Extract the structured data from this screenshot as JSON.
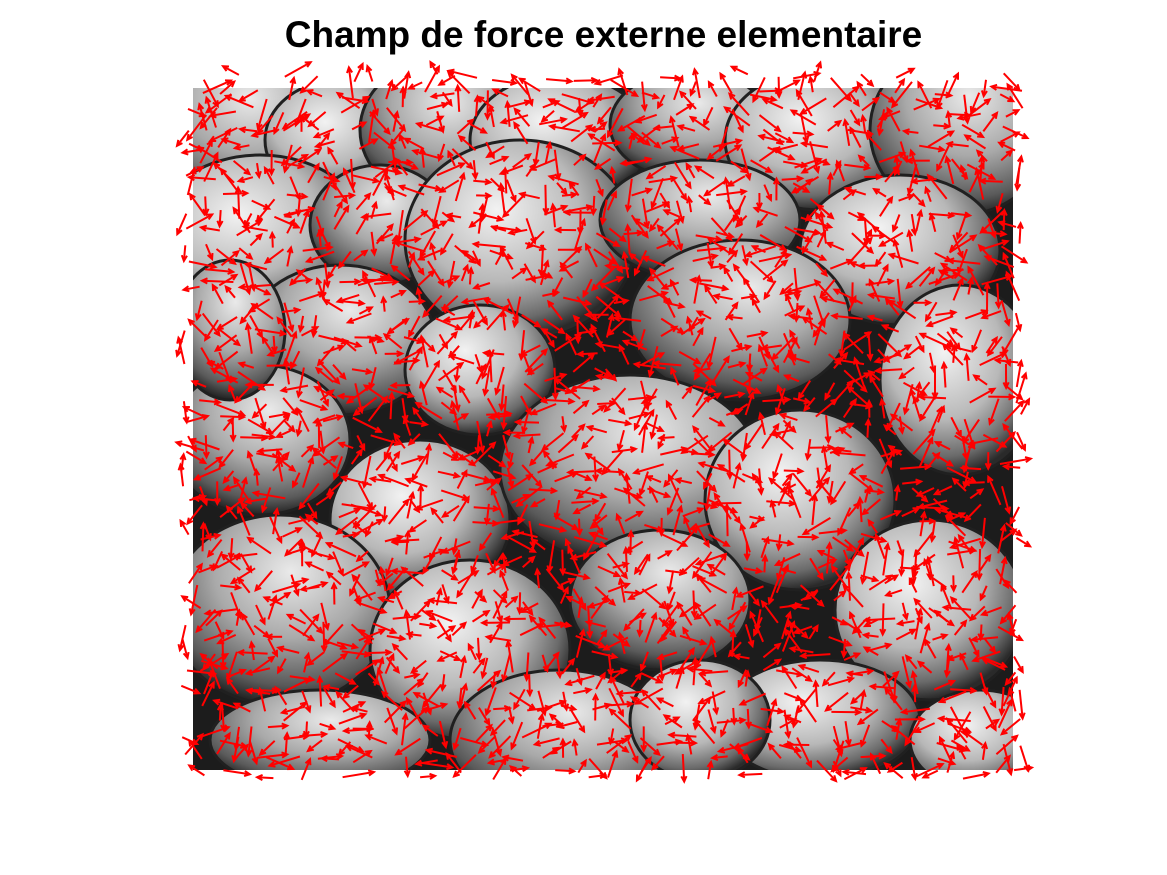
{
  "figure": {
    "title": "Champ de force externe elementaire"
  },
  "colors": {
    "arrow": "#ff0000",
    "background": "#ffffff",
    "image_dark": "#1c1c1c",
    "image_light": "#e6e6e6"
  },
  "chart_data": {
    "type": "quiver",
    "title": "Champ de force externe elementaire",
    "background_image": "grayscale photo of a pile of apples",
    "vector_color": "#ff0000",
    "axes_visible": false,
    "grid": false,
    "legend": "none"
  }
}
